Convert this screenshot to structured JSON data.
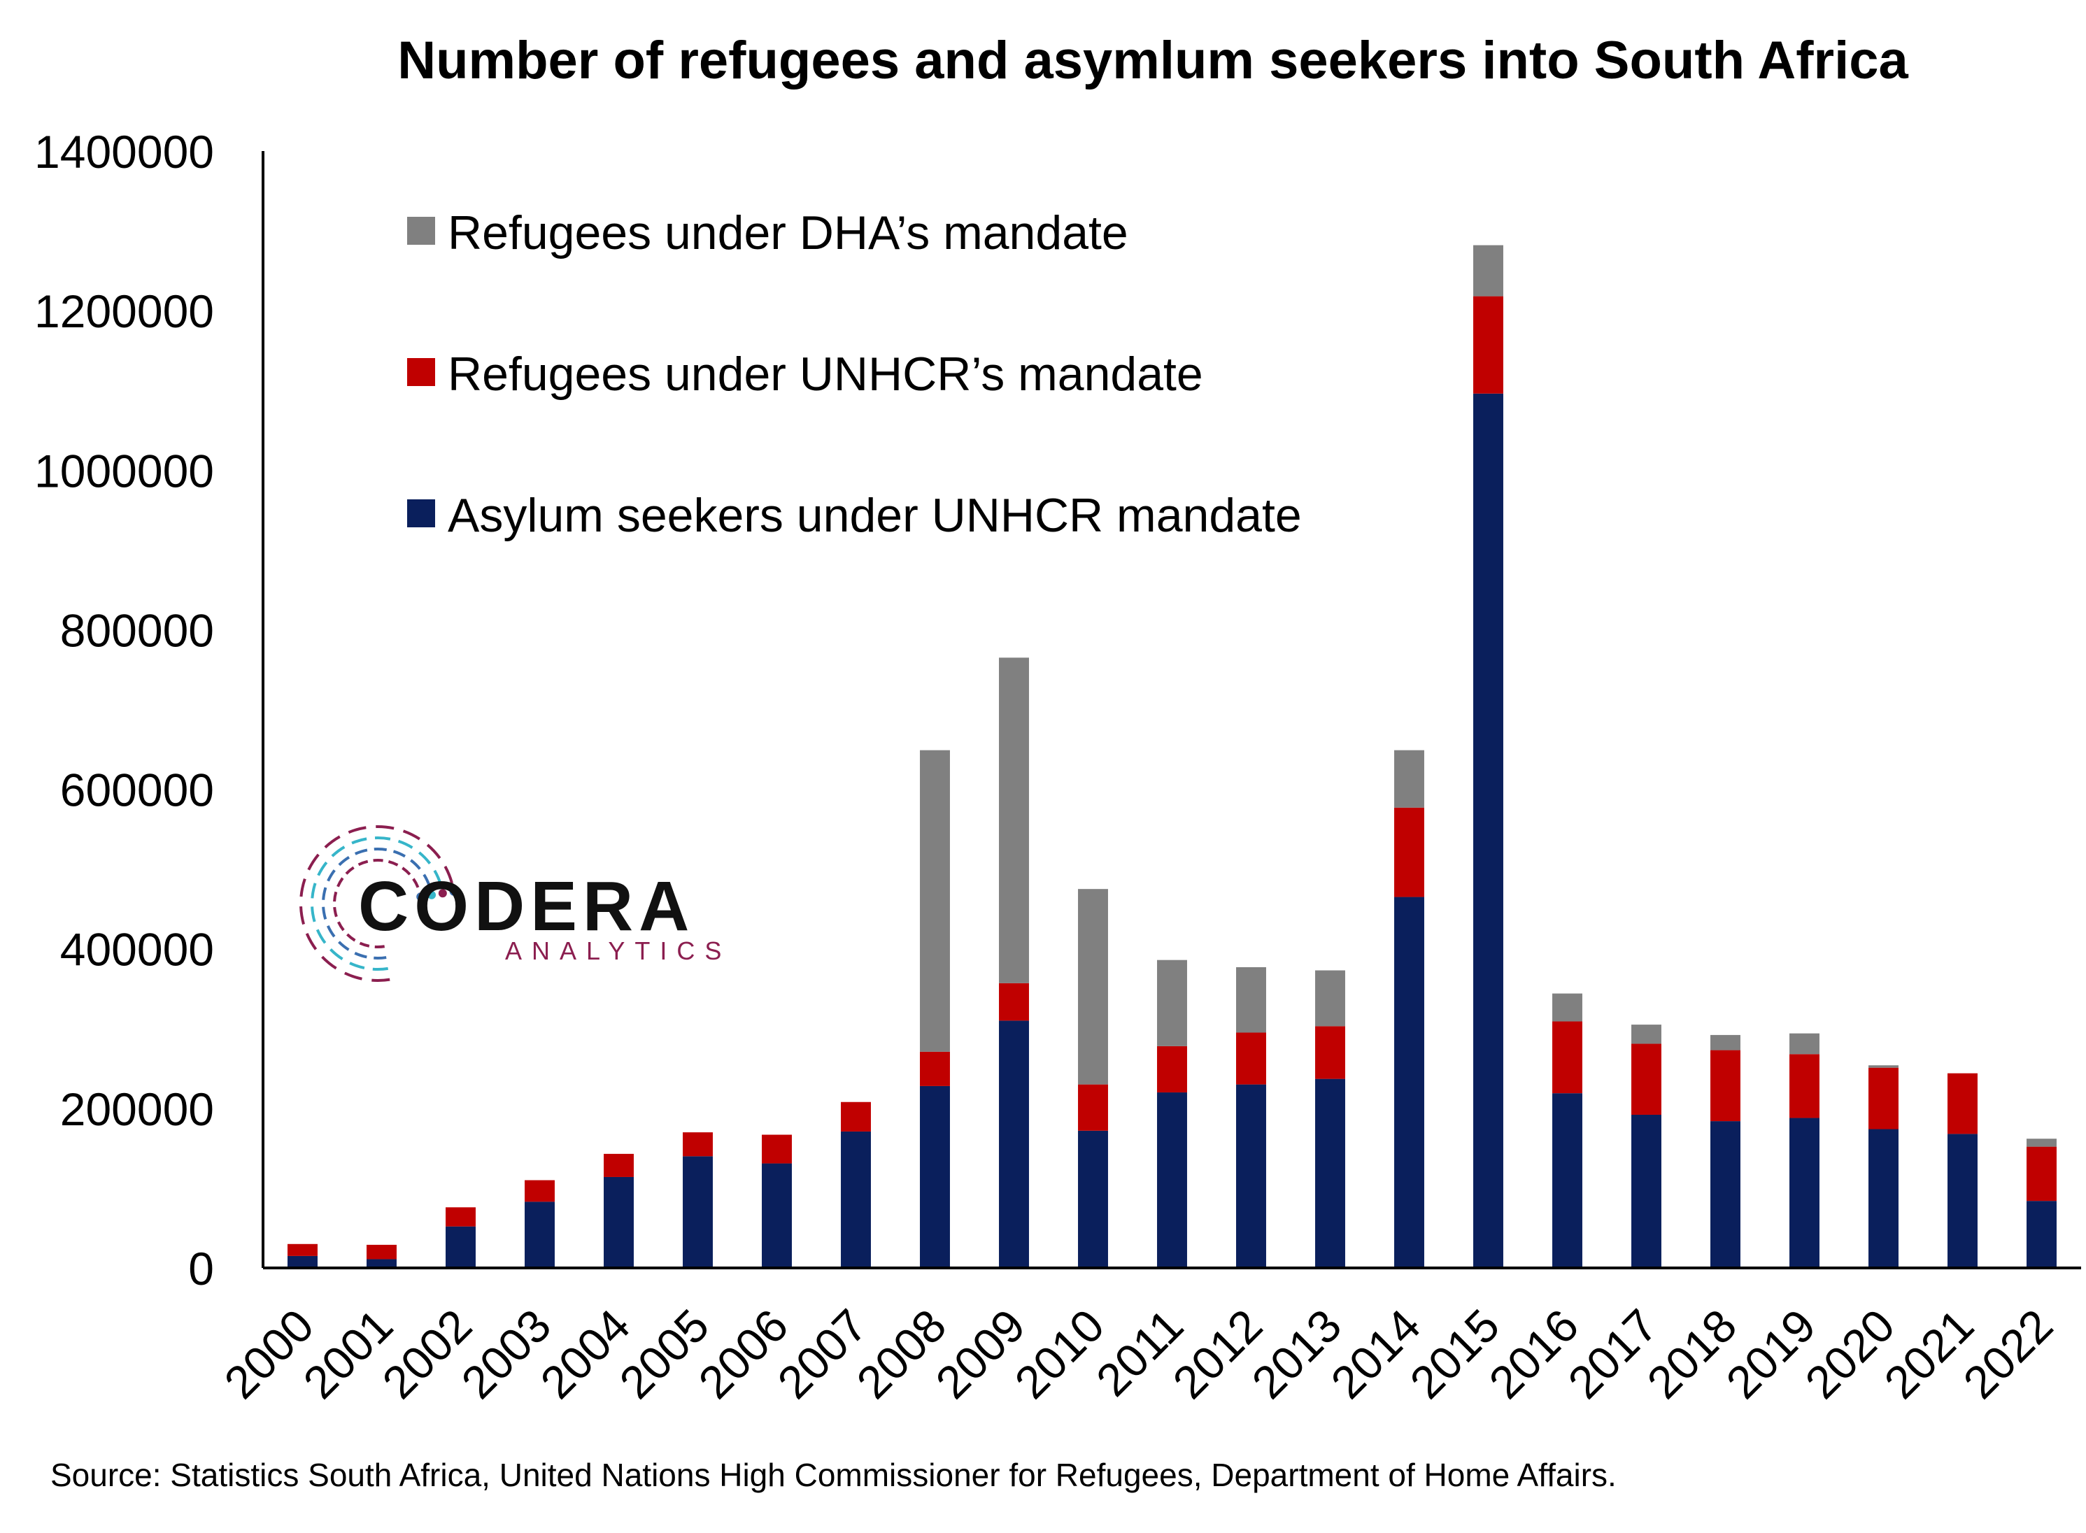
{
  "chart_data": {
    "type": "bar",
    "stacked": true,
    "title": "Number of refugees and asymlum seekers into South Africa",
    "categories": [
      "2000",
      "2001",
      "2002",
      "2003",
      "2004",
      "2005",
      "2006",
      "2007",
      "2008",
      "2009",
      "2010",
      "2011",
      "2012",
      "2013",
      "2014",
      "2015",
      "2016",
      "2017",
      "2018",
      "2019",
      "2020",
      "2021",
      "2022"
    ],
    "series": [
      {
        "name": "Asylum seekers under UNHCR mandate",
        "color": "#0A1F5C",
        "values": [
          15000,
          11000,
          52000,
          83000,
          114000,
          140000,
          131000,
          171000,
          228000,
          310000,
          172000,
          220000,
          230000,
          237000,
          465000,
          1096000,
          219000,
          192000,
          184000,
          188000,
          174000,
          168000,
          84000
        ]
      },
      {
        "name": "Refugees under UNHCR’s mandate",
        "color": "#C00000",
        "values": [
          15000,
          18000,
          24000,
          27000,
          29000,
          30000,
          36000,
          37000,
          43000,
          47000,
          58000,
          58000,
          65000,
          66000,
          112000,
          122000,
          90000,
          89000,
          89000,
          80000,
          77000,
          76000,
          68000
        ]
      },
      {
        "name": "Refugees under DHA’s mandate",
        "color": "#808080",
        "values": [
          0,
          0,
          0,
          0,
          0,
          0,
          0,
          0,
          378000,
          408000,
          245000,
          108000,
          82000,
          70000,
          72000,
          64000,
          35000,
          24000,
          19000,
          26000,
          3000,
          0,
          10000
        ]
      }
    ],
    "ylim": [
      0,
      1400000
    ],
    "yticks": [
      "0",
      "200000",
      "400000",
      "600000",
      "800000",
      "1000000",
      "1200000",
      "1400000"
    ],
    "ytick_values": [
      0,
      200000,
      400000,
      600000,
      800000,
      1000000,
      1200000,
      1400000
    ],
    "legend": {
      "placement": "top-left",
      "order": [
        "Refugees under DHA’s mandate",
        "Refugees under UNHCR’s mandate",
        "Asylum seekers under UNHCR mandate"
      ]
    },
    "grid": false,
    "source": "Source: Statistics South Africa, United Nations High Commissioner for Refugees, Department of Home Affairs."
  },
  "logo": {
    "name": "CODERA",
    "tagline": "ANALYTICS",
    "colors": [
      "#8B1E4F",
      "#3A6FB0",
      "#36B5C9"
    ]
  }
}
